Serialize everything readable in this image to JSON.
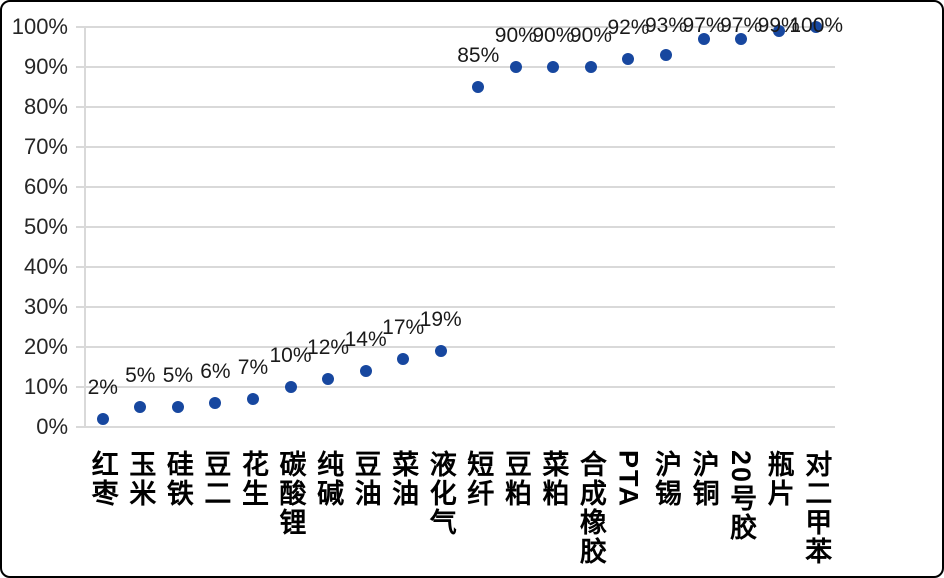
{
  "chart_data": {
    "type": "scatter",
    "title": "",
    "xlabel": "",
    "ylabel": "",
    "categories": [
      "红枣",
      "玉米",
      "硅铁",
      "豆二",
      "花生",
      "碳酸锂",
      "纯碱",
      "豆油",
      "菜油",
      "液化气",
      "短纤",
      "豆粕",
      "菜粕",
      "合成橡胶",
      "PTA",
      "沪锡",
      "沪铜",
      "20号胶",
      "瓶片",
      "对二甲苯"
    ],
    "values": [
      2,
      5,
      5,
      6,
      7,
      10,
      12,
      14,
      17,
      19,
      85,
      90,
      90,
      90,
      92,
      93,
      97,
      97,
      99,
      100
    ],
    "point_labels": [
      "2%",
      "5%",
      "5%",
      "6%",
      "7%",
      "10%",
      "12%",
      "14%",
      "17%",
      "19%",
      "85%",
      "90%",
      "90%",
      "90%",
      "92%",
      "93%",
      "97%",
      "97%",
      "99%",
      "100%"
    ],
    "y_ticks": [
      "0%",
      "10%",
      "20%",
      "30%",
      "40%",
      "50%",
      "60%",
      "70%",
      "80%",
      "90%",
      "100%"
    ],
    "ylim": [
      0,
      100
    ],
    "grid": true,
    "legend_position": "none",
    "colors": {
      "marker": "#17479F",
      "gridline": "#D9D9D9",
      "axis": "#D9D9D9",
      "tick_text": "#262626",
      "point_label_text": "#1A1A1A",
      "category_text": "#000000",
      "border": "#000000",
      "background": "#FFFFFF"
    }
  }
}
